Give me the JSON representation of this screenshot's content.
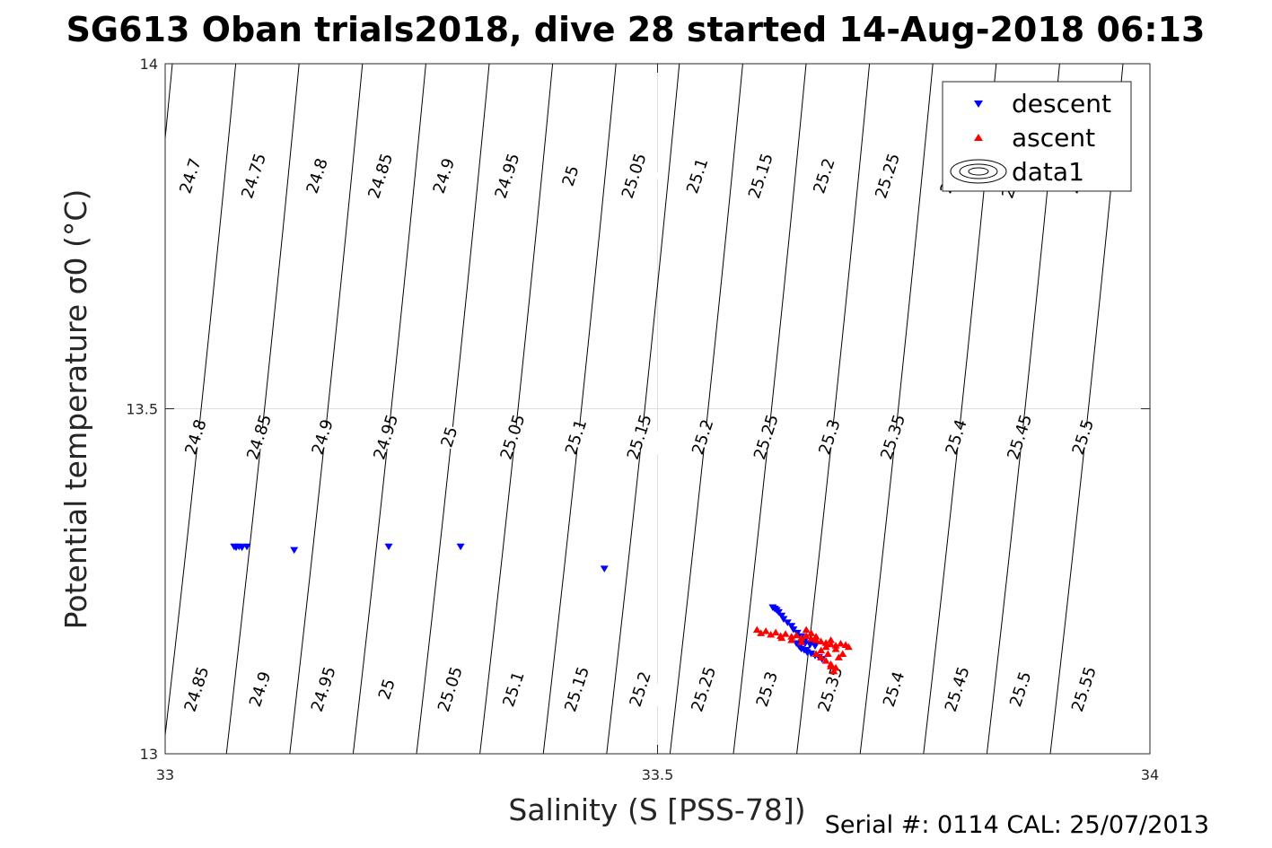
{
  "footer": {
    "serial": "Serial #: 0114  CAL: 25/07/2013"
  },
  "chart_data": {
    "type": "scatter",
    "title": "SG613 Oban trials2018, dive 28 started 14-Aug-2018 06:13",
    "xlabel": "Salinity (S [PSS-78])",
    "ylabel": "Potential temperature σ0 (°C)",
    "xlim": [
      33,
      34
    ],
    "ylim": [
      13,
      14
    ],
    "xticks": [
      "33",
      "33.5",
      "34"
    ],
    "yticks": [
      "13",
      "13.5",
      "14"
    ],
    "grid": true,
    "legend_position": "top-right",
    "legend": [
      "descent",
      "ascent",
      "data1"
    ],
    "series": [
      {
        "name": "descent",
        "marker": "triangle-down",
        "color": "#0000ff",
        "points": [
          [
            33.07,
            13.3
          ],
          [
            33.072,
            13.299
          ],
          [
            33.075,
            13.3
          ],
          [
            33.078,
            13.299
          ],
          [
            33.083,
            13.3
          ],
          [
            33.131,
            13.295
          ],
          [
            33.227,
            13.3
          ],
          [
            33.3,
            13.3
          ],
          [
            33.446,
            13.268
          ],
          [
            33.617,
            13.212
          ],
          [
            33.619,
            13.21
          ],
          [
            33.621,
            13.208
          ],
          [
            33.623,
            13.205
          ],
          [
            33.626,
            13.2
          ],
          [
            33.628,
            13.195
          ],
          [
            33.632,
            13.19
          ],
          [
            33.636,
            13.185
          ],
          [
            33.638,
            13.18
          ],
          [
            33.642,
            13.175
          ],
          [
            33.646,
            13.17
          ],
          [
            33.65,
            13.165
          ],
          [
            33.641,
            13.16
          ],
          [
            33.644,
            13.155
          ],
          [
            33.649,
            13.15
          ],
          [
            33.652,
            13.147
          ],
          [
            33.656,
            13.145
          ],
          [
            33.66,
            13.142
          ],
          [
            33.664,
            13.14
          ],
          [
            33.667,
            13.137
          ],
          [
            33.65,
            13.16
          ],
          [
            33.655,
            13.158
          ],
          [
            33.66,
            13.156
          ],
          [
            33.646,
            13.152
          ],
          [
            33.651,
            13.15
          ]
        ]
      },
      {
        "name": "ascent",
        "marker": "triangle-up",
        "color": "#ff0000",
        "points": [
          [
            33.601,
            13.18
          ],
          [
            33.605,
            13.175
          ],
          [
            33.61,
            13.178
          ],
          [
            33.615,
            13.173
          ],
          [
            33.62,
            13.176
          ],
          [
            33.625,
            13.171
          ],
          [
            33.63,
            13.174
          ],
          [
            33.636,
            13.17
          ],
          [
            33.641,
            13.172
          ],
          [
            33.646,
            13.168
          ],
          [
            33.651,
            13.171
          ],
          [
            33.656,
            13.167
          ],
          [
            33.661,
            13.165
          ],
          [
            33.666,
            13.163
          ],
          [
            33.671,
            13.161
          ],
          [
            33.676,
            13.159
          ],
          [
            33.681,
            13.157
          ],
          [
            33.686,
            13.16
          ],
          [
            33.691,
            13.158
          ],
          [
            33.694,
            13.155
          ],
          [
            33.676,
            13.165
          ],
          [
            33.671,
            13.155
          ],
          [
            33.666,
            13.15
          ],
          [
            33.661,
            13.145
          ],
          [
            33.666,
            13.14
          ],
          [
            33.671,
            13.135
          ],
          [
            33.676,
            13.13
          ],
          [
            33.681,
            13.125
          ],
          [
            33.679,
            13.12
          ],
          [
            33.676,
            13.127
          ],
          [
            33.684,
            13.14
          ],
          [
            33.688,
            13.145
          ],
          [
            33.636,
            13.165
          ],
          [
            33.626,
            13.168
          ],
          [
            33.656,
            13.175
          ],
          [
            33.661,
            13.17
          ],
          [
            33.651,
            13.18
          ],
          [
            33.646,
            13.162
          ],
          [
            33.681,
            13.152
          ],
          [
            33.673,
            13.145
          ]
        ]
      },
      {
        "name": "data1",
        "marker": "contour",
        "color": "#000000",
        "points": []
      }
    ],
    "isopycnals": {
      "top_labels": [
        "24.7",
        "24.75",
        "24.8",
        "24.85",
        "24.9",
        "24.95",
        "25",
        "25.05",
        "25.1",
        "25.15",
        "25.2",
        "25.25",
        "25.3",
        "25.35",
        "25.4"
      ],
      "middle_labels": [
        "24.8",
        "24.85",
        "24.9",
        "24.95",
        "25",
        "25.05",
        "25.1",
        "25.15",
        "25.2",
        "25.25",
        "25.3",
        "25.35",
        "25.4",
        "25.45",
        "25.5"
      ],
      "bottom_labels": [
        "24.85",
        "24.9",
        "24.95",
        "25",
        "25.05",
        "25.1",
        "25.15",
        "25.2",
        "25.25",
        "25.3",
        "25.35",
        "25.4",
        "25.45",
        "25.5",
        "25.55"
      ]
    }
  }
}
